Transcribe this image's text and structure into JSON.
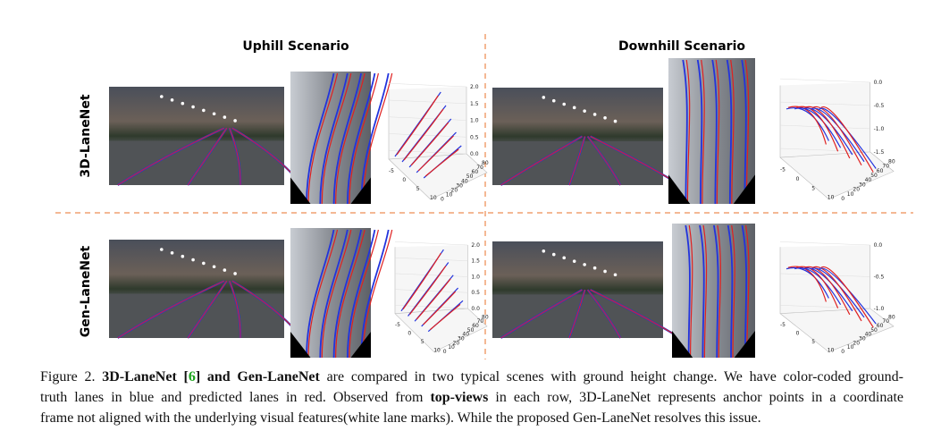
{
  "figure": {
    "column_titles": [
      "Uphill Scenario",
      "Downhill Scenario"
    ],
    "row_labels": [
      "3D-LaneNet",
      "Gen-LaneNet"
    ],
    "plots": [
      {
        "z_ticks": [
          "2.0",
          "1.5",
          "1.0",
          "0.5",
          "0.0"
        ],
        "y_ticks": [
          "80",
          "70",
          "60",
          "50",
          "40",
          "30",
          "20",
          "10",
          "0"
        ],
        "x_ticks": [
          "-5",
          "0",
          "5",
          "10"
        ]
      },
      {
        "z_ticks": [
          "0.0",
          "-0.5",
          "-1.0",
          "-1.5"
        ],
        "y_ticks": [
          "80",
          "70",
          "60",
          "50",
          "40",
          "30",
          "20",
          "10",
          "0"
        ],
        "x_ticks": [
          "-5",
          "0",
          "5",
          "10"
        ]
      },
      {
        "z_ticks": [
          "2.0",
          "1.5",
          "1.0",
          "0.5",
          "0.0"
        ],
        "y_ticks": [
          "80",
          "70",
          "60",
          "50",
          "40",
          "30",
          "20",
          "10",
          "0"
        ],
        "x_ticks": [
          "-5",
          "0",
          "5",
          "10"
        ]
      },
      {
        "z_ticks": [
          "0.0",
          "-0.5",
          "-1.0"
        ],
        "y_ticks": [
          "80",
          "70",
          "60",
          "50",
          "40",
          "30",
          "20",
          "10",
          "0"
        ],
        "x_ticks": [
          "-5",
          "0",
          "5",
          "10"
        ]
      }
    ]
  },
  "caption": {
    "lines": [
      [
        {
          "text": "Figure 2. ",
          "style": "normal"
        },
        {
          "text": "3D-LaneNet [",
          "style": "bold"
        },
        {
          "text": "6",
          "style": "cite"
        },
        {
          "text": "] and Gen-LaneNet",
          "style": "bold"
        },
        {
          "text": " are compared in two typical scenes with ground height change. We have color-coded ground-",
          "style": "normal"
        }
      ],
      [
        {
          "text": "truth lanes in blue and predicted lanes in red. Observed from ",
          "style": "normal"
        },
        {
          "text": "top-views",
          "style": "bold"
        },
        {
          "text": " in each row, 3D-LaneNet represents anchor points in a coordinate",
          "style": "normal"
        }
      ],
      [
        {
          "text": "frame not aligned with the underlying visual features(white lane marks). While the proposed Gen-LaneNet resolves this issue.",
          "style": "normal"
        }
      ]
    ]
  }
}
